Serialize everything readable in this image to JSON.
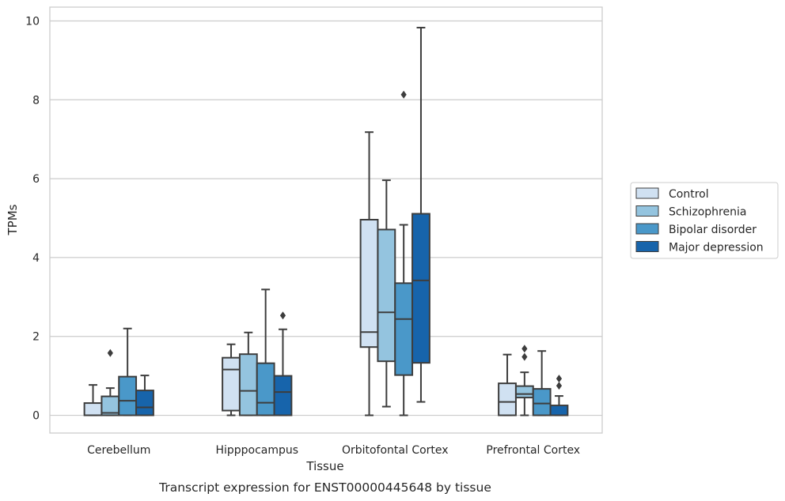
{
  "chart_data": {
    "type": "box",
    "title": "",
    "caption": "Transcript expression for ENST00000445648 by tissue",
    "xlabel": "Tissue",
    "ylabel": "TPMs",
    "ylim": [
      -0.45,
      10.35
    ],
    "yticks": [
      0,
      2,
      4,
      6,
      8,
      10
    ],
    "grid": "horizontal",
    "legend_position": "right",
    "categories": [
      "Cerebellum",
      "Hipppocampus",
      "Orbitofontal Cortex",
      "Prefrontal Cortex"
    ],
    "series": [
      {
        "name": "Control",
        "color": "#d0e1f2",
        "boxes": [
          {
            "whislo": 0,
            "q1": 0,
            "med": 0,
            "q3": 0.31,
            "whishi": 0.77,
            "fliers": []
          },
          {
            "whislo": 0,
            "q1": 0.12,
            "med": 1.16,
            "q3": 1.46,
            "whishi": 1.8,
            "fliers": []
          },
          {
            "whislo": 0,
            "q1": 1.73,
            "med": 2.11,
            "q3": 4.96,
            "whishi": 7.18,
            "fliers": []
          },
          {
            "whislo": 0,
            "q1": 0,
            "med": 0.34,
            "q3": 0.81,
            "whishi": 1.54,
            "fliers": []
          }
        ]
      },
      {
        "name": "Schizophrenia",
        "color": "#94c4df",
        "boxes": [
          {
            "whislo": 0,
            "q1": 0,
            "med": 0.06,
            "q3": 0.48,
            "whishi": 0.69,
            "fliers": [
              1.58
            ]
          },
          {
            "whislo": 0,
            "q1": 0,
            "med": 0.62,
            "q3": 1.55,
            "whishi": 2.1,
            "fliers": []
          },
          {
            "whislo": 0.22,
            "q1": 1.37,
            "med": 2.61,
            "q3": 4.71,
            "whishi": 5.96,
            "fliers": []
          },
          {
            "whislo": 0,
            "q1": 0.45,
            "med": 0.54,
            "q3": 0.74,
            "whishi": 1.09,
            "fliers": [
              1.48,
              1.69
            ]
          }
        ]
      },
      {
        "name": "Bipolar disorder",
        "color": "#4a98c9",
        "boxes": [
          {
            "whislo": 0,
            "q1": 0,
            "med": 0.37,
            "q3": 0.98,
            "whishi": 2.2,
            "fliers": []
          },
          {
            "whislo": 0,
            "q1": 0,
            "med": 0.32,
            "q3": 1.32,
            "whishi": 3.19,
            "fliers": []
          },
          {
            "whislo": 0,
            "q1": 1.02,
            "med": 2.44,
            "q3": 3.35,
            "whishi": 4.83,
            "fliers": [
              8.13
            ]
          },
          {
            "whislo": 0,
            "q1": 0,
            "med": 0.3,
            "q3": 0.67,
            "whishi": 1.63,
            "fliers": []
          }
        ]
      },
      {
        "name": "Major depression",
        "color": "#1764ab",
        "boxes": [
          {
            "whislo": 0,
            "q1": 0,
            "med": 0.2,
            "q3": 0.63,
            "whishi": 1.01,
            "fliers": []
          },
          {
            "whislo": 0,
            "q1": 0,
            "med": 0.59,
            "q3": 1.0,
            "whishi": 2.18,
            "fliers": [
              2.53
            ]
          },
          {
            "whislo": 0.34,
            "q1": 1.33,
            "med": 3.42,
            "q3": 5.11,
            "whishi": 9.83,
            "fliers": []
          },
          {
            "whislo": 0,
            "q1": 0,
            "med": 0,
            "q3": 0.25,
            "whishi": 0.49,
            "fliers": [
              0.75,
              0.93
            ]
          }
        ]
      }
    ]
  }
}
